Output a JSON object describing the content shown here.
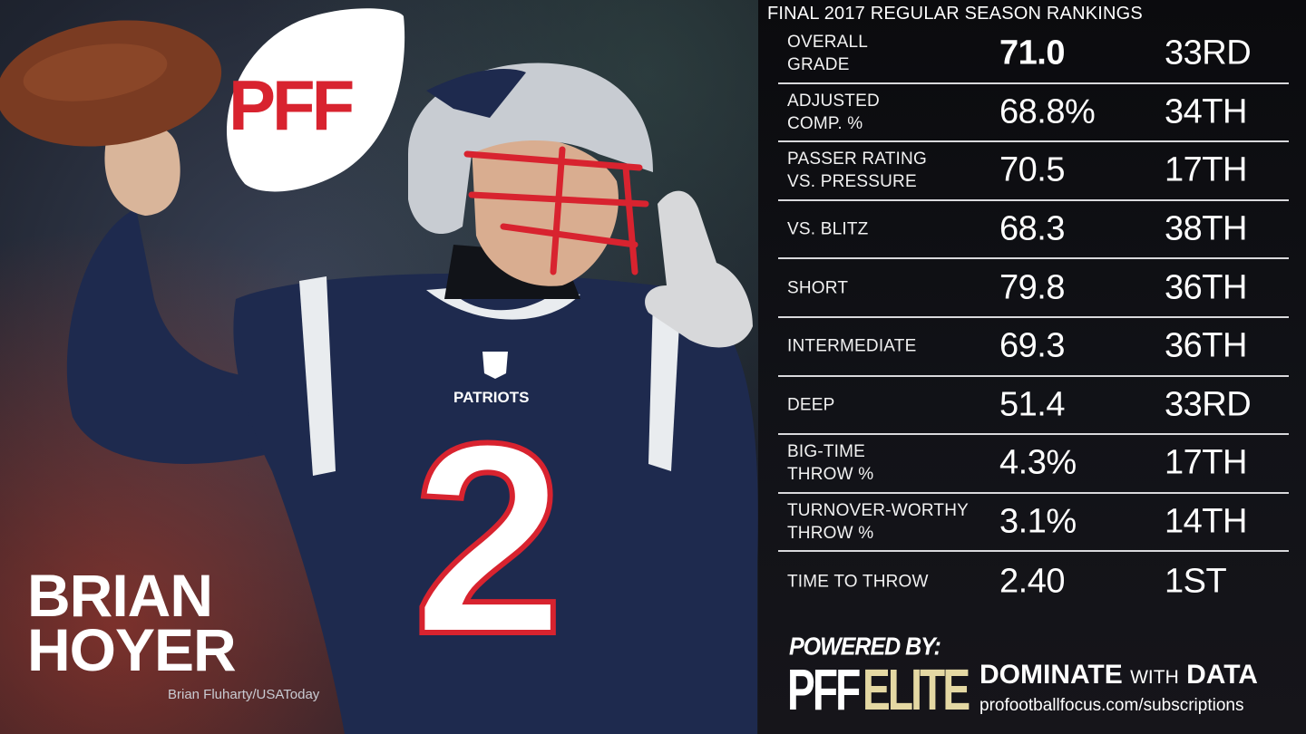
{
  "panel_title": "FINAL 2017 REGULAR SEASON RANKINGS",
  "logo_text": "PFF",
  "player": {
    "first_name": "BRIAN",
    "last_name": "HOYER",
    "jersey_number": "2",
    "team_wordmark": "PATRIOTS"
  },
  "photo_credit": "Brian Fluharty/USAToday",
  "stats": [
    {
      "label": "OVERALL\nGRADE",
      "grade": "71.0",
      "rank": "33RD"
    },
    {
      "label": "ADJUSTED\nCOMP. %",
      "grade": "68.8%",
      "rank": "34TH"
    },
    {
      "label": "PASSER RATING\nVS. PRESSURE",
      "grade": "70.5",
      "rank": "17TH"
    },
    {
      "label": "VS. BLITZ",
      "grade": "68.3",
      "rank": "38TH"
    },
    {
      "label": "SHORT",
      "grade": "79.8",
      "rank": "36TH"
    },
    {
      "label": "INTERMEDIATE",
      "grade": "69.3",
      "rank": "36TH"
    },
    {
      "label": "DEEP",
      "grade": "51.4",
      "rank": "33RD"
    },
    {
      "label": "BIG-TIME\nTHROW %",
      "grade": "4.3%",
      "rank": "17TH"
    },
    {
      "label": "TURNOVER-WORTHY\nTHROW %",
      "grade": "3.1%",
      "rank": "14TH"
    },
    {
      "label": "TIME TO THROW",
      "grade": "2.40",
      "rank": "1ST"
    }
  ],
  "footer": {
    "powered_by": "POWERED BY:",
    "elite_pff": "PFF",
    "elite_word": "ELITE",
    "tagline_strong_1": "DOMINATE",
    "tagline_small": "WITH",
    "tagline_strong_2": "DATA",
    "url": "profootballfocus.com/subscriptions"
  },
  "colors": {
    "jersey_navy": "#1e2a4e",
    "helmet_silver": "#c8ccd2",
    "facemask_red": "#d8232f",
    "elite_gold": "#e4d8a3"
  }
}
